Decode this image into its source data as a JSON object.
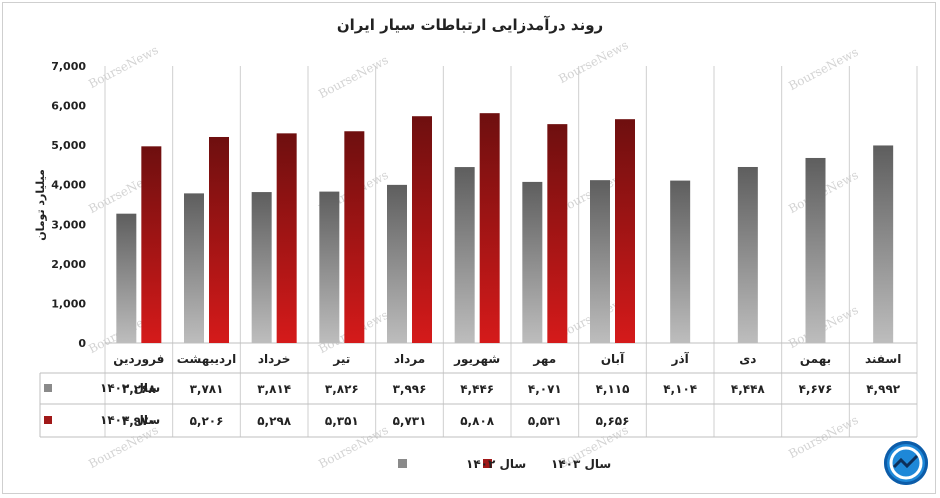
{
  "chart_data": {
    "type": "bar",
    "title": "روند درآمدزایی ارتباطات سیار ایران",
    "ylabel": "میلیارد تومان",
    "ylim": [
      0,
      7000
    ],
    "yticks": [
      0,
      1000,
      2000,
      3000,
      4000,
      5000,
      6000,
      7000
    ],
    "ytick_labels": [
      "0",
      "1,000",
      "2,000",
      "3,000",
      "4,000",
      "5,000",
      "6,000",
      "7,000"
    ],
    "categories": [
      "فروردین",
      "اردیبهشت",
      "خرداد",
      "تیر",
      "مرداد",
      "شهریور",
      "مهر",
      "آبان",
      "آذر",
      "دی",
      "بهمن",
      "اسفند"
    ],
    "series": [
      {
        "name": "سال ۱۴۰۲",
        "color": "#8a8a8a",
        "values": [
          3268,
          3781,
          3814,
          3826,
          3996,
          4446,
          4071,
          4115,
          4104,
          4448,
          4676,
          4992
        ],
        "labels": [
          "۳,۲۶۸",
          "۳,۷۸۱",
          "۳,۸۱۴",
          "۳,۸۲۶",
          "۳,۹۹۶",
          "۴,۴۴۶",
          "۴,۰۷۱",
          "۴,۱۱۵",
          "۴,۱۰۴",
          "۴,۴۴۸",
          "۴,۶۷۶",
          "۴,۹۹۲"
        ]
      },
      {
        "name": "سال ۱۴۰۳",
        "color": "#a01818",
        "values": [
          4970,
          5206,
          5298,
          5351,
          5731,
          5808,
          5531,
          5656,
          null,
          null,
          null,
          null
        ],
        "labels": [
          "۴,۹۷۰",
          "۵,۲۰۶",
          "۵,۲۹۸",
          "۵,۳۵۱",
          "۵,۷۳۱",
          "۵,۸۰۸",
          "۵,۵۳۱",
          "۵,۶۵۶",
          "",
          "",
          "",
          ""
        ]
      }
    ],
    "legend": "bottom",
    "grid": "vertical-category-separators",
    "watermark": "BourseNews"
  }
}
